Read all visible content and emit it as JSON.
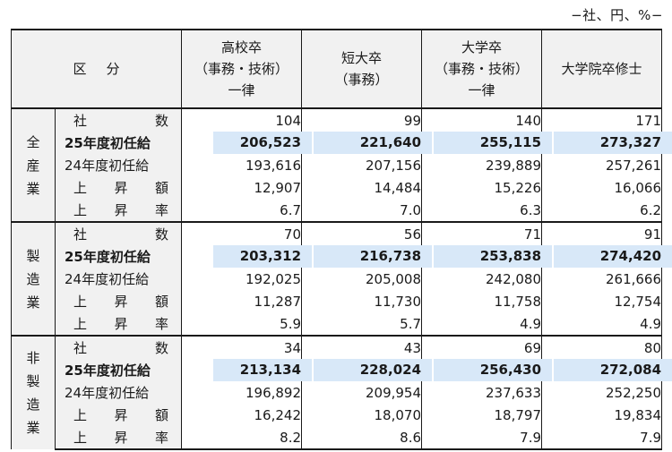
{
  "unit_note": "−社、円、%−",
  "header": {
    "kubun": "区分",
    "columns": [
      {
        "lines": [
          "高校卒",
          "（事務・技術）",
          "一律"
        ]
      },
      {
        "lines": [
          "短大卒",
          "（事務）"
        ]
      },
      {
        "lines": [
          "大学卒",
          "（事務・技術）",
          "一律"
        ]
      },
      {
        "lines": [
          "大学院卒修士"
        ]
      }
    ]
  },
  "groups": [
    {
      "industry_chars": [
        "全",
        "産",
        "業"
      ],
      "rows": [
        {
          "label_chars": [
            "社",
            "数"
          ],
          "values": [
            "104",
            "99",
            "140",
            "171"
          ]
        },
        {
          "label": "25年度初任給",
          "values": [
            "206,523",
            "221,640",
            "255,115",
            "273,327"
          ]
        },
        {
          "label": "24年度初任給",
          "values": [
            "193,616",
            "207,156",
            "239,889",
            "257,261"
          ]
        },
        {
          "label_chars": [
            "上",
            "昇",
            "額"
          ],
          "values": [
            "12,907",
            "14,484",
            "15,226",
            "16,066"
          ]
        },
        {
          "label_chars": [
            "上",
            "昇",
            "率"
          ],
          "values": [
            "6.7",
            "7.0",
            "6.3",
            "6.2"
          ]
        }
      ]
    },
    {
      "industry_chars": [
        "製",
        "造",
        "業"
      ],
      "rows": [
        {
          "label_chars": [
            "社",
            "数"
          ],
          "values": [
            "70",
            "56",
            "71",
            "91"
          ]
        },
        {
          "label": "25年度初任給",
          "values": [
            "203,312",
            "216,738",
            "253,838",
            "274,420"
          ]
        },
        {
          "label": "24年度初任給",
          "values": [
            "192,025",
            "205,008",
            "242,080",
            "261,666"
          ]
        },
        {
          "label_chars": [
            "上",
            "昇",
            "額"
          ],
          "values": [
            "11,287",
            "11,730",
            "11,758",
            "12,754"
          ]
        },
        {
          "label_chars": [
            "上",
            "昇",
            "率"
          ],
          "values": [
            "5.9",
            "5.7",
            "4.9",
            "4.9"
          ]
        }
      ]
    },
    {
      "industry_chars": [
        "非",
        "製",
        "造",
        "業"
      ],
      "rows": [
        {
          "label_chars": [
            "社",
            "数"
          ],
          "values": [
            "34",
            "43",
            "69",
            "80"
          ]
        },
        {
          "label": "25年度初任給",
          "values": [
            "213,134",
            "228,024",
            "256,430",
            "272,084"
          ]
        },
        {
          "label": "24年度初任給",
          "values": [
            "196,892",
            "209,954",
            "237,633",
            "252,250"
          ]
        },
        {
          "label_chars": [
            "上",
            "昇",
            "額"
          ],
          "values": [
            "16,242",
            "18,070",
            "18,797",
            "19,834"
          ]
        },
        {
          "label_chars": [
            "上",
            "昇",
            "率"
          ],
          "values": [
            "8.2",
            "8.6",
            "7.9",
            "7.9"
          ]
        }
      ]
    }
  ],
  "colors": {
    "highlight": "#d8e8f8",
    "label_bg": "#f1f1f1",
    "border": "#1a1a1a"
  }
}
